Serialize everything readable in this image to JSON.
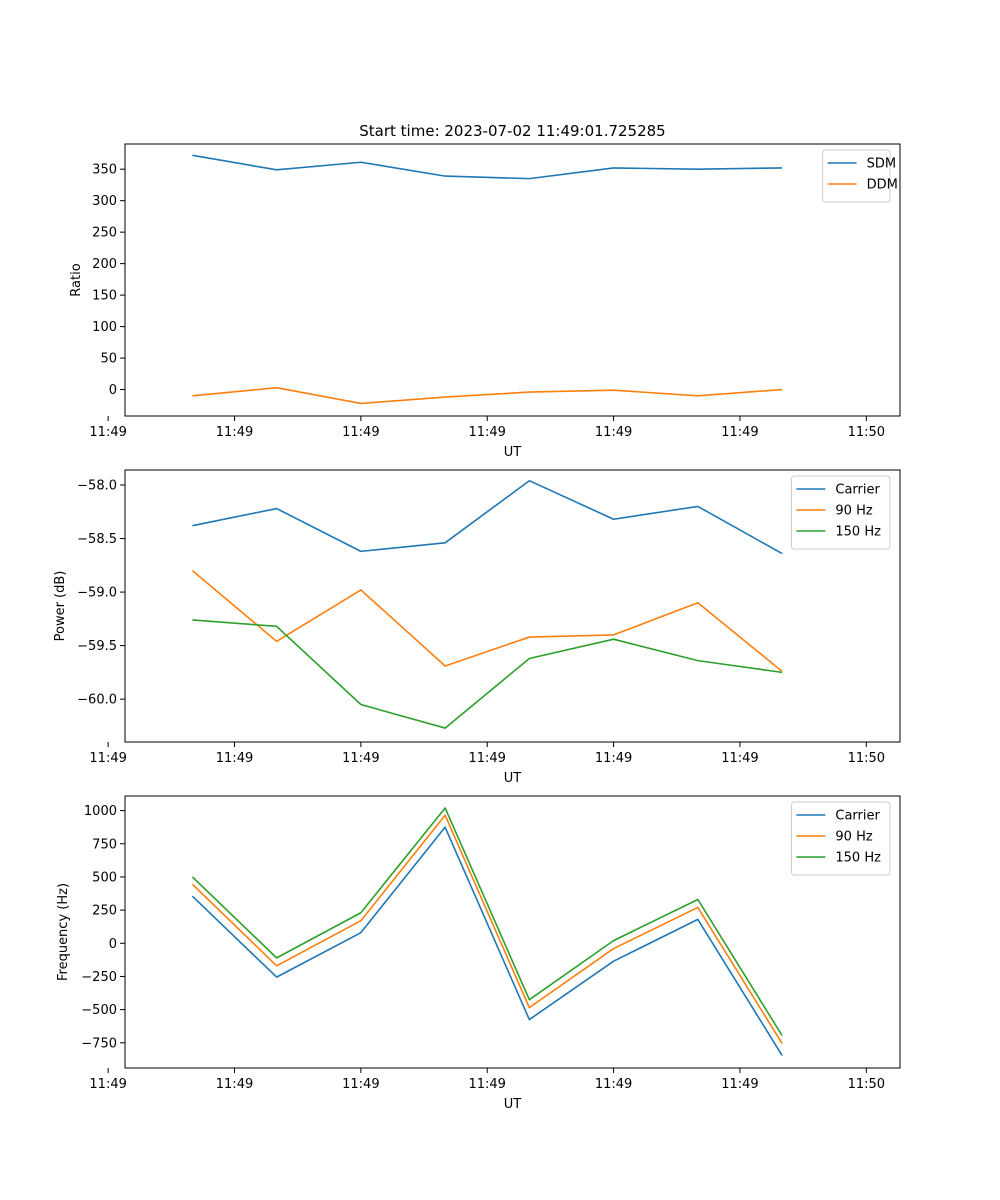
{
  "colors": {
    "blue": "#1f77b4",
    "orange": "#ff7f0e",
    "green": "#2ca02c"
  },
  "chart_data": [
    {
      "type": "line",
      "title": "Start time: 2023-07-02 11:49:01.725285",
      "xlabel": "UT",
      "ylabel": "Ratio",
      "x": [
        1,
        2,
        3,
        4,
        5,
        6,
        7,
        8
      ],
      "xlim": [
        0.2,
        9.4
      ],
      "xticks": [
        0,
        1.5,
        3,
        4.5,
        6,
        7.5,
        9
      ],
      "xtick_labels": [
        "11:49",
        "11:49",
        "11:49",
        "11:49",
        "11:49",
        "11:49",
        "11:50"
      ],
      "ylim": [
        -42,
        390
      ],
      "yticks": [
        0,
        50,
        100,
        150,
        200,
        250,
        300,
        350
      ],
      "ytick_labels": [
        "0",
        "50",
        "100",
        "150",
        "200",
        "250",
        "300",
        "350"
      ],
      "legend_position": "top-right",
      "series": [
        {
          "name": "SDM",
          "color": "#1f77b4",
          "values": [
            372,
            349,
            361,
            339,
            335,
            352,
            350,
            352
          ]
        },
        {
          "name": "DDM",
          "color": "#ff7f0e",
          "values": [
            -10,
            3,
            -22,
            -12,
            -4,
            -1,
            -10,
            0
          ]
        }
      ]
    },
    {
      "type": "line",
      "title": "",
      "xlabel": "UT",
      "ylabel": "Power (dB)",
      "x": [
        1,
        2,
        3,
        4,
        5,
        6,
        7,
        8
      ],
      "xlim": [
        0.2,
        9.4
      ],
      "xticks": [
        0,
        1.5,
        3,
        4.5,
        6,
        7.5,
        9
      ],
      "xtick_labels": [
        "11:49",
        "11:49",
        "11:49",
        "11:49",
        "11:49",
        "11:49",
        "11:50"
      ],
      "ylim": [
        -60.4,
        -57.86
      ],
      "yticks": [
        -60.0,
        -59.5,
        -59.0,
        -58.5,
        -58.0
      ],
      "ytick_labels": [
        "−60.0",
        "−59.5",
        "−59.0",
        "−58.5",
        "−58.0"
      ],
      "legend_position": "top-right",
      "series": [
        {
          "name": "Carrier",
          "color": "#1f77b4",
          "values": [
            -58.38,
            -58.22,
            -58.62,
            -58.54,
            -57.96,
            -58.32,
            -58.2,
            -58.64
          ]
        },
        {
          "name": "90 Hz",
          "color": "#ff7f0e",
          "values": [
            -58.8,
            -59.46,
            -58.98,
            -59.69,
            -59.42,
            -59.4,
            -59.1,
            -59.74
          ]
        },
        {
          "name": "150 Hz",
          "color": "#2ca02c",
          "values": [
            -59.26,
            -59.32,
            -60.05,
            -60.27,
            -59.62,
            -59.44,
            -59.64,
            -59.75
          ]
        }
      ]
    },
    {
      "type": "line",
      "title": "",
      "xlabel": "UT",
      "ylabel": "Frequency (Hz)",
      "x": [
        1,
        2,
        3,
        4,
        5,
        6,
        7,
        8
      ],
      "xlim": [
        0.2,
        9.4
      ],
      "xticks": [
        0,
        1.5,
        3,
        4.5,
        6,
        7.5,
        9
      ],
      "xtick_labels": [
        "11:49",
        "11:49",
        "11:49",
        "11:49",
        "11:49",
        "11:49",
        "11:50"
      ],
      "ylim": [
        -940,
        1110
      ],
      "yticks": [
        -750,
        -500,
        -250,
        0,
        250,
        500,
        750,
        1000
      ],
      "ytick_labels": [
        "−750",
        "−500",
        "−250",
        "0",
        "250",
        "500",
        "750",
        "1000"
      ],
      "legend_position": "top-right",
      "series": [
        {
          "name": "Carrier",
          "color": "#1f77b4",
          "values": [
            355,
            -255,
            80,
            875,
            -575,
            -135,
            180,
            -845
          ]
        },
        {
          "name": "90 Hz",
          "color": "#ff7f0e",
          "values": [
            445,
            -170,
            170,
            965,
            -485,
            -40,
            270,
            -755
          ]
        },
        {
          "name": "150 Hz",
          "color": "#2ca02c",
          "values": [
            500,
            -110,
            230,
            1020,
            -425,
            20,
            330,
            -695
          ]
        }
      ]
    }
  ]
}
